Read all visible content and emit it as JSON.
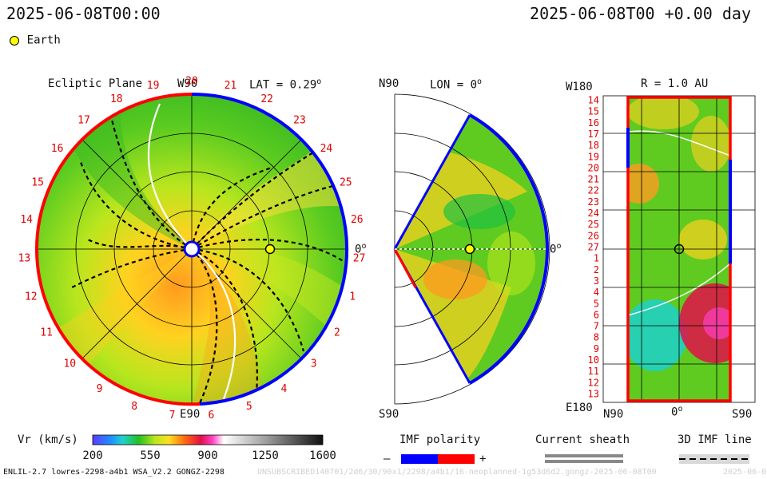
{
  "header": {
    "left_timestamp": "2025-06-08T00:00",
    "right_timestamp": "2025-06-08T00 +0.00 day"
  },
  "legend": {
    "earth_label": "Earth",
    "earth_color": "#ffff00"
  },
  "panels": {
    "ecliptic": {
      "title": "Ecliptic Plane",
      "lat_label": "LAT = 0.29",
      "lat_sup": "o",
      "top_label": "W90",
      "bottom_label": "E90",
      "right_label": "0",
      "right_sup": "o"
    },
    "meridional": {
      "lon_label": "LON = 0",
      "lon_sup": "o",
      "top_label": "N90",
      "bottom_label": "S90",
      "right_label": "0",
      "right_sup": "o"
    },
    "radial": {
      "r_label": "R = 1.0 AU",
      "top_label": "W180",
      "bottom_label": "E180",
      "left_label": "N90",
      "mid_label": "0",
      "mid_sup": "o",
      "right_label": "S90"
    }
  },
  "chart_data": {
    "type": "heatmap",
    "quantity_label": "Vr (km/s)",
    "colorbar": {
      "min": 200,
      "max": 1600,
      "ticks": [
        "200",
        "550",
        "900",
        "1250",
        "1600"
      ]
    },
    "ecliptic_carrington_labels": [
      "20",
      "21",
      "22",
      "23",
      "24",
      "25",
      "26",
      "27",
      "1",
      "2",
      "3",
      "4",
      "5",
      "6",
      "7",
      "8",
      "9",
      "10",
      "11",
      "12",
      "13",
      "14",
      "15",
      "16",
      "17",
      "18",
      "19"
    ],
    "radial_carrington_labels": [
      "14",
      "15",
      "16",
      "17",
      "18",
      "19",
      "20",
      "21",
      "22",
      "23",
      "24",
      "25",
      "26",
      "27",
      "1",
      "2",
      "3",
      "4",
      "5",
      "6",
      "7",
      "8",
      "9",
      "10",
      "11",
      "12",
      "13"
    ],
    "earth_position": {
      "r_au": 1.0,
      "lon_deg": 0,
      "lat_deg": 0.29
    }
  },
  "footer": {
    "imf_polarity_label": "IMF polarity",
    "imf_minus": "–",
    "imf_plus": "+",
    "imf_negative_color": "#0000ff",
    "imf_positive_color": "#ff0000",
    "current_sheath_label": "Current sheath",
    "imf_line_label": "3D IMF line",
    "model_info": "ENLIL-2.7 lowres-2298-a4b1 WSA_V2.2 GONGZ-2298",
    "run_id": "UNSUBSCRIBED140701/2d6/30/90x1/2298/a4b1/16-neoplanned-1g53d6d2.gongz-2025-06-08T00",
    "corner_date": "2025-06-08"
  }
}
